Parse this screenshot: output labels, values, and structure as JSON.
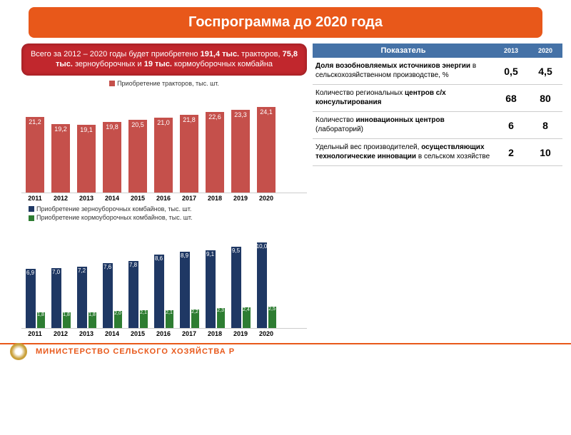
{
  "header": {
    "title": "Госпрограмма до 2020 года"
  },
  "infobox": {
    "prefix": "Всего за 2012 – 2020 годы будет приобретено ",
    "n1": "191,4 тыс.",
    "t1": " тракторов, ",
    "n2": "75,8 тыс.",
    "t2": " зерноуборочных и ",
    "n3": "19 тыс.",
    "t3": " кормоуборочных комбайна"
  },
  "years": [
    "2011",
    "2012",
    "2013",
    "2014",
    "2015",
    "2016",
    "2017",
    "2018",
    "2019",
    "2020"
  ],
  "chart1": {
    "legend": "Приобретение тракторов, тыс. шт.",
    "color": "#c5504b",
    "values": [
      "21,2",
      "19,2",
      "19,1",
      "19,8",
      "20,5",
      "21,0",
      "21,8",
      "22,6",
      "23,3",
      "24,1"
    ],
    "heights": [
      106,
      96,
      95,
      99,
      102,
      105,
      109,
      113,
      116,
      120
    ],
    "ymax": 30
  },
  "chart2": {
    "legend1": "Приобретение зерноуборочных комбайнов, тыс. шт.",
    "legend2": "Приобретение кормоуборочных комбайнов, тыс. шт.",
    "color1": "#1f3864",
    "color2": "#2e7d32",
    "values1": [
      "6,9",
      "7,0",
      "7,2",
      "7,6",
      "7,8",
      "8,6",
      "8,9",
      "9,1",
      "9,5",
      "10,0"
    ],
    "values2": [
      "1,8",
      "1,8",
      "1,8",
      "2,0",
      "2,1",
      "2,1",
      "2,2",
      "2,3",
      "2,4",
      "2,5"
    ],
    "heights1": [
      83,
      84,
      86,
      91,
      94,
      103,
      107,
      109,
      114,
      120
    ],
    "heights2": [
      22,
      22,
      22,
      24,
      25,
      25,
      26,
      28,
      29,
      30
    ],
    "ymax": 12
  },
  "table": {
    "head": {
      "c1": "Показатель",
      "c2": "2013",
      "c3": "2020"
    },
    "rows": [
      {
        "label_bold": "Доля возобновляемых источников энергии",
        "label_rest": " в сельскохозяйственном производстве, %",
        "v1": "0,5",
        "v2": "4,5"
      },
      {
        "label_pre": "Количество региональных ",
        "label_bold": "центров с/х консультирования",
        "label_rest": "",
        "v1": "68",
        "v2": "80"
      },
      {
        "label_pre": "Количество ",
        "label_bold": "инновационных центров",
        "label_rest": " (лабораторий)",
        "v1": "6",
        "v2": "8"
      },
      {
        "label_pre": "Удельный вес производителей, ",
        "label_bold": "осуществляющих технологические инновации",
        "label_rest": " в сельском хозяйстве",
        "v1": "2",
        "v2": "10"
      }
    ]
  },
  "footer": {
    "text": "МИНИСТЕРСТВО СЕЛЬСКОГО ХОЗЯЙСТВА Р"
  }
}
